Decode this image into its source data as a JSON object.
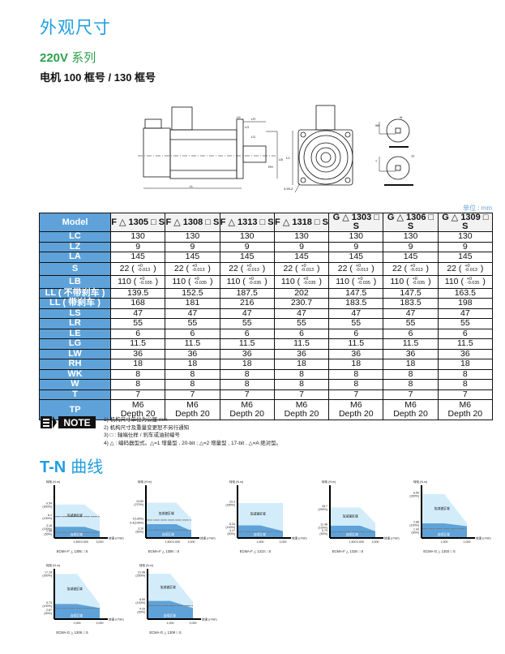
{
  "header": {
    "title": "外观尺寸",
    "series_bold": "220V",
    "series_text": "系列",
    "frames": "电机 100 框号 / 130 框号"
  },
  "drawing": {
    "labels": {
      "ll": "LL",
      "lr": "LR",
      "ls": "LS",
      "le": "LE",
      "lg": "LG",
      "lb": "LB",
      "lc": "LC",
      "la": "LA",
      "lz": "4-ΦLZ",
      "w": "W",
      "wk": "WK",
      "t": "T",
      "rh": "RH",
      "tp": "TP"
    }
  },
  "table": {
    "unit": "单位 : mm",
    "corner": "Model",
    "models": [
      "F △ 1305 □ S",
      "F △ 1308 □ S",
      "F △ 1313 □ S",
      "F △ 1318 □ S",
      "G △ 1303 □ S",
      "G △ 1306 □ S",
      "G △ 1309 □ S"
    ],
    "rows": [
      {
        "label": "LC",
        "values": [
          "130",
          "130",
          "130",
          "130",
          "130",
          "130",
          "130"
        ]
      },
      {
        "label": "LZ",
        "values": [
          "9",
          "9",
          "9",
          "9",
          "9",
          "9",
          "9"
        ]
      },
      {
        "label": "LA",
        "values": [
          "145",
          "145",
          "145",
          "145",
          "145",
          "145",
          "145"
        ]
      },
      {
        "label": "S",
        "values": [
          "22",
          "22",
          "22",
          "22",
          "22",
          "22",
          "22"
        ],
        "tol_upper": "+0",
        "tol_lower": "-0.013"
      },
      {
        "label": "LB",
        "values": [
          "110",
          "110",
          "110",
          "110",
          "110",
          "110",
          "110"
        ],
        "tol_upper": "+0",
        "tol_lower": "-0.035"
      },
      {
        "label": "LL ( 不带刹车 )",
        "values": [
          "139.5",
          "152.5",
          "187.5",
          "202",
          "147.5",
          "147.5",
          "163.5"
        ]
      },
      {
        "label": "LL ( 带刹车 )",
        "values": [
          "168",
          "181",
          "216",
          "230.7",
          "183.5",
          "183.5",
          "198"
        ]
      },
      {
        "label": "LS",
        "values": [
          "47",
          "47",
          "47",
          "47",
          "47",
          "47",
          "47"
        ]
      },
      {
        "label": "LR",
        "values": [
          "55",
          "55",
          "55",
          "55",
          "55",
          "55",
          "55"
        ]
      },
      {
        "label": "LE",
        "values": [
          "6",
          "6",
          "6",
          "6",
          "6",
          "6",
          "6"
        ]
      },
      {
        "label": "LG",
        "values": [
          "11.5",
          "11.5",
          "11.5",
          "11.5",
          "11.5",
          "11.5",
          "11.5"
        ]
      },
      {
        "label": "LW",
        "values": [
          "36",
          "36",
          "36",
          "36",
          "36",
          "36",
          "36"
        ]
      },
      {
        "label": "RH",
        "values": [
          "18",
          "18",
          "18",
          "18",
          "18",
          "18",
          "18"
        ]
      },
      {
        "label": "WK",
        "values": [
          "8",
          "8",
          "8",
          "8",
          "8",
          "8",
          "8"
        ]
      },
      {
        "label": "W",
        "values": [
          "8",
          "8",
          "8",
          "8",
          "8",
          "8",
          "8"
        ]
      },
      {
        "label": "T",
        "values": [
          "7",
          "7",
          "7",
          "7",
          "7",
          "7",
          "7"
        ]
      },
      {
        "label": "TP",
        "values": [
          "M6\nDepth 20",
          "M6\nDepth 20",
          "M6\nDepth 20",
          "M6\nDepth 20",
          "M6\nDepth 20",
          "M6\nDepth 20",
          "M6\nDepth 20"
        ]
      }
    ]
  },
  "notes": {
    "logo": "NOTE",
    "items": [
      "1) 机构尺寸单位为公厘 mm",
      "2) 机构尺寸及重量变更恕不另行通知",
      "3) □ : 轴端仕样 / 刹车或油封编号",
      "4) △ : 编码器型式。△=1 增量型 , 20-bit ; △=2 增量型 , 17-bit , △=A 绝对型。"
    ]
  },
  "tn": {
    "title_bold": "T-N",
    "title_text": "曲线"
  },
  "chart_data": [
    {
      "type": "area",
      "title": "ECMA-F △ 1305 □ S",
      "ylabel": "转矩 (N.m)",
      "xlabel": "转速 (r/min)",
      "ylim": [
        0,
        14.6
      ],
      "xlim": [
        0,
        3000
      ],
      "xticks": [
        "1,500",
        "2,000",
        "3,000"
      ],
      "xtick_values": [
        1500,
        2000,
        3000
      ],
      "yticks": [
        {
          "value": 9.54,
          "label": "9.54",
          "pct": "(300%)"
        },
        {
          "value": 6.1,
          "label": "6.1",
          "pct": "(190%)"
        },
        {
          "value": 3.18,
          "label": "3.18",
          "pct": "(100%)"
        },
        {
          "value": 1.59,
          "label": "1.59",
          "pct": "(50%)"
        }
      ],
      "peak": [
        [
          0,
          9.54
        ],
        [
          2000,
          9.54
        ],
        [
          3000,
          6.1
        ]
      ],
      "continuous": [
        [
          0,
          3.18
        ],
        [
          2000,
          3.18
        ],
        [
          3000,
          1.9
        ]
      ],
      "dashed": [
        6.1,
        1.59
      ],
      "peak_label": "加减速区域",
      "continuous_label": "连续区域"
    },
    {
      "type": "area",
      "title": "ECMA-F △ 1308 □ S",
      "ylabel": "转矩 (N.m)",
      "xlabel": "转速 (r/min)",
      "ylim": [
        0,
        20
      ],
      "xlim": [
        0,
        3000
      ],
      "xticks": [
        "1,500",
        "2,000",
        "3,000"
      ],
      "xtick_values": [
        1500,
        2000,
        3000
      ],
      "yticks": [
        {
          "value": 13.8,
          "label": "13.80",
          "pct": "(270%)"
        },
        {
          "value": 7,
          "label": "7(135%)",
          "pct": ""
        },
        {
          "value": 5.4,
          "label": "5.4(105%)",
          "pct": ""
        },
        {
          "value": 3.1,
          "label": "3.10",
          "pct": "(60%)"
        }
      ],
      "peak": [
        [
          0,
          13.8
        ],
        [
          2000,
          13.8
        ],
        [
          3000,
          7.6
        ]
      ],
      "continuous": [
        [
          0,
          5.4
        ],
        [
          2000,
          5.4
        ],
        [
          3000,
          2.8
        ]
      ],
      "dashed": [
        7,
        3.1
      ],
      "peak_label": "加减速区域",
      "continuous_label": "连续区域"
    },
    {
      "type": "area",
      "title": "ECMA-F △ 1313 □ S",
      "ylabel": "转矩 (N.m)",
      "xlabel": "转速 (r/min)",
      "ylim": [
        0,
        34
      ],
      "xlim": [
        0,
        3000
      ],
      "xticks": [
        "1,500",
        "3,000"
      ],
      "xtick_values": [
        1500,
        3000
      ],
      "yticks": [
        {
          "value": 23.3,
          "label": "23.3",
          "pct": "(280%)"
        },
        {
          "value": 8.34,
          "label": "8.34",
          "pct": "(100%)"
        },
        {
          "value": 4.17,
          "label": "4.17",
          "pct": "(50%)"
        }
      ],
      "peak": [
        [
          0,
          23.3
        ],
        [
          3000,
          23.3
        ]
      ],
      "continuous": [
        [
          0,
          8.34
        ],
        [
          1500,
          8.34
        ],
        [
          3000,
          4.6
        ]
      ],
      "dashed": [
        4.17
      ],
      "peak_label": "加减速区域",
      "continuous_label": "连续区域"
    },
    {
      "type": "area",
      "title": "ECMA-F △ 1318 □ S",
      "ylabel": "转矩 (N.m)",
      "xlabel": "转速 (r/min)",
      "ylim": [
        0,
        48
      ],
      "xlim": [
        0,
        3000
      ],
      "xticks": [
        "1,500",
        "2,000",
        "3,000"
      ],
      "xtick_values": [
        1500,
        2000,
        3000
      ],
      "yticks": [
        {
          "value": 28.7,
          "label": "28.7",
          "pct": "(250%)"
        },
        {
          "value": 11.48,
          "label": "11.48",
          "pct": "(100%)"
        },
        {
          "value": 5.74,
          "label": "5.74",
          "pct": "(50%)"
        }
      ],
      "peak": [
        [
          0,
          28.7
        ],
        [
          2000,
          28.7
        ],
        [
          3000,
          14
        ]
      ],
      "continuous": [
        [
          0,
          11.48
        ],
        [
          2000,
          11.48
        ],
        [
          3000,
          6.3
        ]
      ],
      "dashed": [
        5.74
      ],
      "peak_label": "加减速区域",
      "continuous_label": "连续区域"
    },
    {
      "type": "area",
      "title": "ECMA-G △ 1303 □ S",
      "ylabel": "转矩 (N.m)",
      "xlabel": "转速 (r/min)",
      "ylim": [
        0,
        10
      ],
      "xlim": [
        0,
        2000
      ],
      "xticks": [
        "1,000",
        "2,000"
      ],
      "xtick_values": [
        1000,
        2000
      ],
      "yticks": [
        {
          "value": 8.59,
          "label": "8.59",
          "pct": "(300%)"
        },
        {
          "value": 2.86,
          "label": "2.86",
          "pct": "(100%)"
        },
        {
          "value": 1.43,
          "label": "1.43",
          "pct": "(50%)"
        }
      ],
      "peak": [
        [
          0,
          8.59
        ],
        [
          1000,
          8.59
        ],
        [
          2000,
          2.9
        ]
      ],
      "continuous": [
        [
          0,
          2.86
        ],
        [
          1000,
          2.86
        ],
        [
          2000,
          2.3
        ]
      ],
      "dashed": [
        1.8
      ],
      "peak_label": "加减速区域",
      "continuous_label": "连续区域"
    },
    {
      "type": "area",
      "title": "ECMA-G △ 1306 □ S",
      "ylabel": "转矩 (N.m)",
      "xlabel": "转速 (r/min)",
      "ylim": [
        0,
        18.5
      ],
      "xlim": [
        0,
        2000
      ],
      "xticks": [
        "1,000",
        "2,000"
      ],
      "xtick_values": [
        1000,
        2000
      ],
      "yticks": [
        {
          "value": 17.19,
          "label": "17.19",
          "pct": "(300%)"
        },
        {
          "value": 5.73,
          "label": "5.73",
          "pct": "(100%)"
        },
        {
          "value": 2.87,
          "label": "2.87",
          "pct": "(50%)"
        }
      ],
      "peak": [
        [
          0,
          17.19
        ],
        [
          1000,
          17.19
        ],
        [
          2000,
          5.7
        ]
      ],
      "continuous": [
        [
          0,
          5.73
        ],
        [
          1000,
          5.73
        ],
        [
          2000,
          4.2
        ]
      ],
      "dashed": [
        4.2
      ],
      "peak_label": "加减速区域",
      "continuous_label": "连续区域"
    },
    {
      "type": "area",
      "title": "ECMA-G △ 1309 □ S",
      "ylabel": "转矩 (N.m)",
      "xlabel": "转速 (r/min)",
      "ylim": [
        0,
        23
      ],
      "xlim": [
        0,
        2000
      ],
      "xticks": [
        "1,000",
        "2,000"
      ],
      "xtick_values": [
        1000,
        2000
      ],
      "yticks": [
        {
          "value": 21.48,
          "label": "21.48",
          "pct": "(250%)"
        },
        {
          "value": 8.59,
          "label": "8.59",
          "pct": "(100%)"
        },
        {
          "value": 4.29,
          "label": "4.29",
          "pct": "(50%)"
        }
      ],
      "peak": [
        [
          0,
          21.48
        ],
        [
          1000,
          21.48
        ],
        [
          2000,
          8.2
        ]
      ],
      "continuous": [
        [
          0,
          8.59
        ],
        [
          1000,
          8.59
        ],
        [
          2000,
          5.2
        ]
      ],
      "dashed": [
        6.3
      ],
      "peak_label": "加减速区域",
      "continuous_label": "连续区域"
    }
  ],
  "colors": {
    "title_blue": "#1f9ee0",
    "series_green": "#2ba24c",
    "table_header": "#5ea2d9",
    "peak_area": "#d3ecfa",
    "continuous_area": "#5ea2d9"
  }
}
